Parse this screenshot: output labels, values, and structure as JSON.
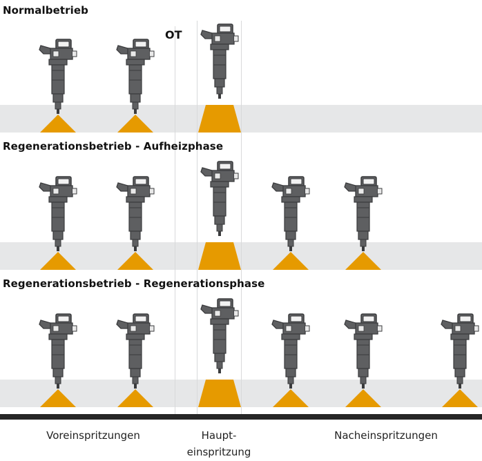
{
  "sections": [
    {
      "title": "Normalbetrieb"
    },
    {
      "title": "Regenerationsbetrieb - Aufheizphase"
    },
    {
      "title": "Regenerationsbetrieb - Regenerationsphase"
    }
  ],
  "ot_label": "OT",
  "captions": {
    "pre": "Voreinspritzungen",
    "main_line1": "Haupt-",
    "main_line2": "einspritzung",
    "post": "Nacheinspritzungen"
  },
  "colors": {
    "spray": "#e69a00",
    "band": "#e6e7e8",
    "injector_body": "#5e5f61",
    "injector_dark": "#3a3b3d",
    "axis": "#262626"
  }
}
